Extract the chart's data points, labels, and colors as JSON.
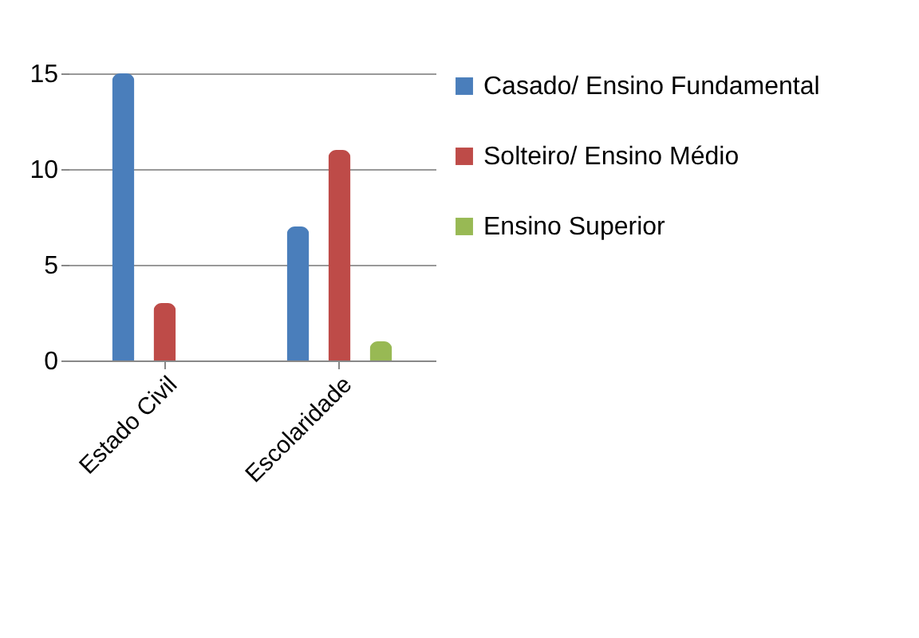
{
  "chart_data": {
    "type": "bar",
    "categories": [
      "Estado Civil",
      "Escolaridade"
    ],
    "series": [
      {
        "name": "Casado/ Ensino Fundamental",
        "color": "#4a7ebb",
        "values": [
          15,
          7
        ]
      },
      {
        "name": "Solteiro/ Ensino Médio",
        "color": "#be4b48",
        "values": [
          3,
          11
        ]
      },
      {
        "name": "Ensino Superior",
        "color": "#98b954",
        "values": [
          null,
          1
        ]
      }
    ],
    "ylim": [
      0,
      15
    ],
    "yticks": [
      0,
      5,
      10,
      15
    ],
    "grid": "y",
    "legend": "right"
  }
}
